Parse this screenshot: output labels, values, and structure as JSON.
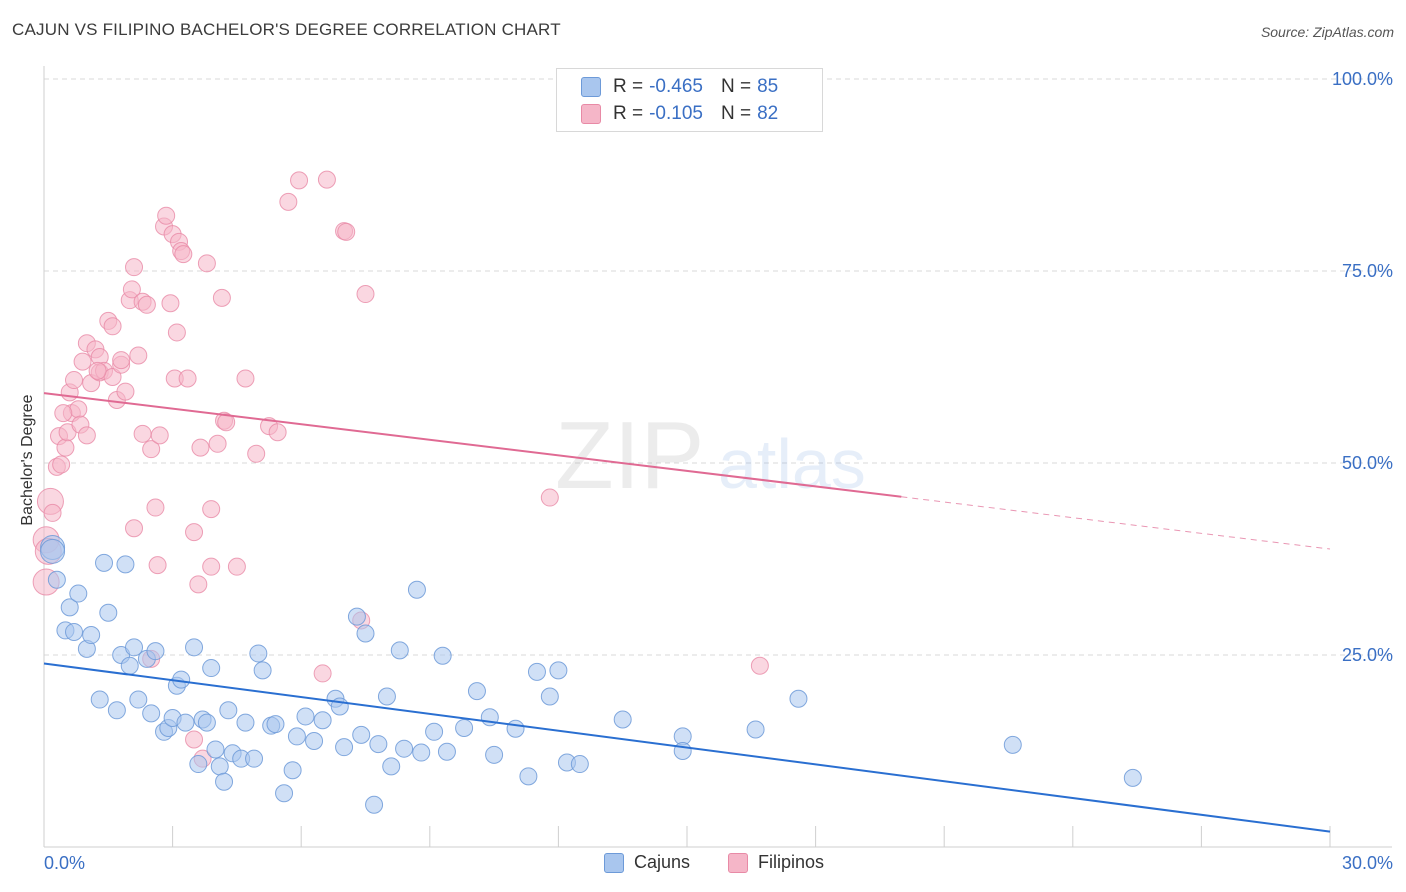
{
  "header": {
    "title": "CAJUN VS FILIPINO BACHELOR'S DEGREE CORRELATION CHART",
    "source": "Source: ZipAtlas.com"
  },
  "watermark": {
    "zip": "ZIP",
    "atlas": "atlas"
  },
  "legend": {
    "rows": [
      {
        "r_label": "R =",
        "r_value": "-0.465",
        "n_label": "N =",
        "n_value": "85",
        "color": "#a9c6ee"
      },
      {
        "r_label": "R =",
        "r_value": "-0.105",
        "n_label": "N =",
        "n_value": "82",
        "color": "#f5b6c8"
      }
    ]
  },
  "bottom_legend": {
    "cajuns": "Cajuns",
    "filipinos": "Filipinos"
  },
  "colors": {
    "cajun_fill": "#a9c6ee",
    "cajun_stroke": "#6d9ad8",
    "cajun_line": "#2a6fd1",
    "filipino_fill": "#f5b6c8",
    "filipino_stroke": "#e88aa6",
    "filipino_line": "#e06a93",
    "axis_label": "#3a6fc4"
  },
  "chart_data": {
    "type": "scatter",
    "title": "CAJUN VS FILIPINO BACHELOR'S DEGREE CORRELATION CHART",
    "xlabel": "",
    "ylabel": "Bachelor's Degree",
    "xlim": [
      0,
      30
    ],
    "ylim": [
      0,
      100
    ],
    "x_tick_labels": [
      "0.0%",
      "30.0%"
    ],
    "y_ticks": [
      25,
      50,
      75,
      100
    ],
    "y_tick_labels": [
      "25.0%",
      "50.0%",
      "75.0%",
      "100.0%"
    ],
    "grid": true,
    "legend_position": "top-center",
    "series": [
      {
        "name": "Cajuns",
        "r": -0.465,
        "n": 85,
        "trend": {
          "x0": 0,
          "y0": 23.9,
          "x1": 30,
          "y1": 2.0
        },
        "points": [
          [
            0.2,
            39.0
          ],
          [
            0.2,
            38.5
          ],
          [
            0.3,
            34.8
          ],
          [
            0.5,
            28.2
          ],
          [
            0.6,
            31.2
          ],
          [
            0.7,
            28.0
          ],
          [
            0.8,
            33.0
          ],
          [
            1.0,
            25.8
          ],
          [
            1.1,
            27.6
          ],
          [
            1.3,
            19.2
          ],
          [
            1.4,
            37.0
          ],
          [
            1.5,
            30.5
          ],
          [
            1.7,
            17.8
          ],
          [
            1.8,
            25.0
          ],
          [
            1.9,
            36.8
          ],
          [
            2.0,
            23.6
          ],
          [
            2.1,
            26.0
          ],
          [
            2.2,
            19.2
          ],
          [
            2.4,
            24.5
          ],
          [
            2.5,
            17.4
          ],
          [
            2.6,
            25.5
          ],
          [
            2.8,
            15.0
          ],
          [
            2.9,
            15.5
          ],
          [
            3.0,
            16.8
          ],
          [
            3.1,
            21.0
          ],
          [
            3.2,
            21.8
          ],
          [
            3.3,
            16.2
          ],
          [
            3.5,
            26.0
          ],
          [
            3.6,
            10.8
          ],
          [
            3.7,
            16.6
          ],
          [
            3.8,
            16.2
          ],
          [
            3.9,
            23.3
          ],
          [
            4.0,
            12.7
          ],
          [
            4.1,
            10.5
          ],
          [
            4.2,
            8.5
          ],
          [
            4.3,
            17.8
          ],
          [
            4.4,
            12.2
          ],
          [
            4.6,
            11.5
          ],
          [
            4.7,
            16.2
          ],
          [
            4.9,
            11.5
          ],
          [
            5.0,
            25.2
          ],
          [
            5.1,
            23.0
          ],
          [
            5.3,
            15.8
          ],
          [
            5.4,
            16.0
          ],
          [
            5.6,
            7.0
          ],
          [
            5.8,
            10.0
          ],
          [
            5.9,
            14.4
          ],
          [
            6.1,
            17.0
          ],
          [
            6.3,
            13.8
          ],
          [
            6.5,
            16.5
          ],
          [
            6.8,
            19.3
          ],
          [
            6.9,
            18.3
          ],
          [
            7.0,
            13.0
          ],
          [
            7.3,
            30.0
          ],
          [
            7.4,
            14.6
          ],
          [
            7.5,
            27.8
          ],
          [
            7.7,
            5.5
          ],
          [
            7.8,
            13.4
          ],
          [
            8.0,
            19.6
          ],
          [
            8.1,
            10.5
          ],
          [
            8.3,
            25.6
          ],
          [
            8.4,
            12.8
          ],
          [
            8.7,
            33.5
          ],
          [
            8.8,
            12.3
          ],
          [
            9.1,
            15.0
          ],
          [
            9.3,
            24.9
          ],
          [
            9.4,
            12.4
          ],
          [
            9.8,
            15.5
          ],
          [
            10.1,
            20.3
          ],
          [
            10.4,
            16.9
          ],
          [
            10.5,
            12.0
          ],
          [
            11.0,
            15.4
          ],
          [
            11.3,
            9.2
          ],
          [
            11.5,
            22.8
          ],
          [
            11.8,
            19.6
          ],
          [
            12.0,
            23.0
          ],
          [
            12.2,
            11.0
          ],
          [
            12.5,
            10.8
          ],
          [
            13.5,
            16.6
          ],
          [
            14.9,
            14.4
          ],
          [
            14.9,
            12.5
          ],
          [
            16.6,
            15.3
          ],
          [
            17.6,
            19.3
          ],
          [
            22.6,
            13.3
          ],
          [
            25.4,
            9.0
          ]
        ]
      },
      {
        "name": "Filipinos",
        "r": -0.105,
        "n": 82,
        "trend": {
          "x0": 0,
          "y0": 59.1,
          "x1": 20.0,
          "y1": 45.6
        },
        "trend_dashed": {
          "x0": 20.0,
          "y0": 45.6,
          "x1": 30,
          "y1": 38.8
        },
        "points": [
          [
            0.05,
            40.0
          ],
          [
            0.05,
            34.5
          ],
          [
            0.15,
            45.0
          ],
          [
            0.2,
            43.5
          ],
          [
            0.3,
            49.5
          ],
          [
            0.35,
            53.5
          ],
          [
            0.4,
            49.8
          ],
          [
            0.5,
            52.0
          ],
          [
            0.55,
            54.0
          ],
          [
            0.6,
            59.2
          ],
          [
            0.65,
            56.5
          ],
          [
            0.7,
            60.8
          ],
          [
            0.8,
            57.0
          ],
          [
            0.85,
            55.0
          ],
          [
            0.9,
            63.2
          ],
          [
            1.0,
            53.6
          ],
          [
            1.0,
            65.6
          ],
          [
            1.1,
            60.4
          ],
          [
            1.2,
            64.8
          ],
          [
            1.3,
            63.8
          ],
          [
            1.3,
            61.8
          ],
          [
            1.4,
            62.0
          ],
          [
            1.5,
            68.5
          ],
          [
            1.6,
            67.8
          ],
          [
            1.6,
            61.2
          ],
          [
            1.7,
            58.2
          ],
          [
            1.8,
            62.8
          ],
          [
            1.8,
            63.4
          ],
          [
            1.9,
            59.3
          ],
          [
            2.0,
            71.2
          ],
          [
            2.05,
            72.6
          ],
          [
            2.1,
            75.5
          ],
          [
            2.1,
            41.5
          ],
          [
            2.2,
            64.0
          ],
          [
            2.3,
            71.0
          ],
          [
            2.3,
            53.8
          ],
          [
            2.4,
            70.6
          ],
          [
            2.5,
            51.8
          ],
          [
            2.5,
            24.5
          ],
          [
            2.6,
            44.2
          ],
          [
            2.65,
            36.7
          ],
          [
            2.7,
            53.6
          ],
          [
            2.8,
            80.8
          ],
          [
            2.85,
            82.2
          ],
          [
            2.95,
            70.8
          ],
          [
            3.0,
            79.8
          ],
          [
            3.05,
            61.0
          ],
          [
            3.1,
            67.0
          ],
          [
            3.15,
            78.8
          ],
          [
            3.2,
            77.6
          ],
          [
            3.25,
            77.2
          ],
          [
            3.35,
            61.0
          ],
          [
            3.5,
            41.0
          ],
          [
            3.5,
            14.0
          ],
          [
            3.6,
            34.2
          ],
          [
            3.65,
            52.0
          ],
          [
            3.7,
            11.5
          ],
          [
            3.8,
            76.0
          ],
          [
            3.9,
            44.0
          ],
          [
            3.9,
            36.5
          ],
          [
            4.05,
            52.5
          ],
          [
            4.15,
            71.5
          ],
          [
            4.2,
            55.5
          ],
          [
            4.25,
            55.3
          ],
          [
            4.5,
            36.5
          ],
          [
            4.7,
            61.0
          ],
          [
            4.95,
            51.2
          ],
          [
            5.25,
            54.8
          ],
          [
            5.45,
            54.0
          ],
          [
            5.7,
            84.0
          ],
          [
            5.95,
            86.8
          ],
          [
            6.5,
            22.6
          ],
          [
            6.6,
            86.9
          ],
          [
            7.0,
            80.2
          ],
          [
            7.05,
            80.1
          ],
          [
            7.4,
            29.5
          ],
          [
            7.5,
            72.0
          ],
          [
            11.8,
            45.5
          ],
          [
            16.7,
            23.6
          ],
          [
            0.1,
            38.5
          ],
          [
            0.45,
            56.5
          ],
          [
            1.25,
            62.0
          ]
        ]
      }
    ]
  }
}
